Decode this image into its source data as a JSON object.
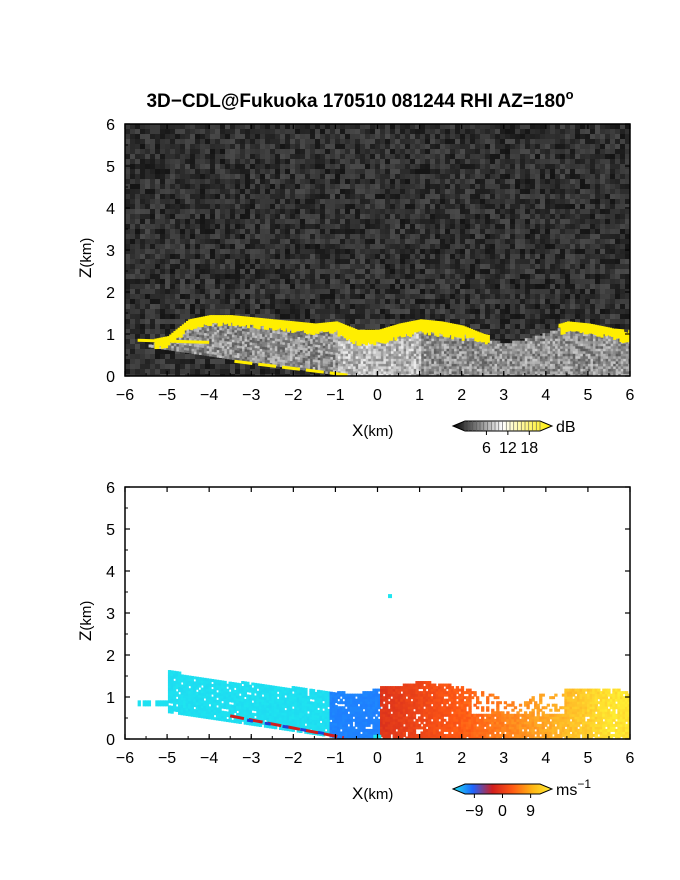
{
  "figure": {
    "title": "3D−CDL@Fukuoka 170510 081244 RHI AZ=180",
    "title_superscript": "o"
  },
  "chart_data": [
    {
      "type": "heatmap",
      "name": "backscatter",
      "xlabel_main": "X",
      "xlabel_unit": "(km)",
      "ylabel_main": "Z",
      "ylabel_unit": "(km)",
      "xlim": [
        -6,
        6
      ],
      "ylim": [
        0,
        6
      ],
      "x_ticks": [
        "−6",
        "−5",
        "−4",
        "−3",
        "−2",
        "−1",
        "0",
        "1",
        "2",
        "3",
        "4",
        "5",
        "6"
      ],
      "y_ticks": [
        "0",
        "1",
        "2",
        "3",
        "4",
        "5",
        "6"
      ],
      "colorbar": {
        "unit": "dB",
        "ticks": [
          "6",
          "12",
          "18"
        ],
        "tick_values": [
          6,
          12,
          18
        ],
        "range": [
          0,
          21
        ],
        "colors": [
          "#000000",
          "#ffffff",
          "#ffee00"
        ]
      },
      "layer_top_km": [
        [
          -5.5,
          0.85
        ],
        [
          -5.0,
          0.95
        ],
        [
          -4.5,
          1.35
        ],
        [
          -4.0,
          1.45
        ],
        [
          -3.5,
          1.45
        ],
        [
          -3.0,
          1.4
        ],
        [
          -2.5,
          1.35
        ],
        [
          -2.0,
          1.3
        ],
        [
          -1.5,
          1.25
        ],
        [
          -1.0,
          1.3
        ],
        [
          -0.5,
          1.1
        ],
        [
          0.0,
          1.1
        ],
        [
          0.5,
          1.25
        ],
        [
          1.0,
          1.35
        ],
        [
          1.5,
          1.3
        ],
        [
          2.0,
          1.2
        ],
        [
          2.5,
          1.0
        ],
        [
          3.0,
          0.9
        ],
        [
          3.5,
          1.0
        ],
        [
          4.0,
          1.15
        ],
        [
          4.5,
          1.3
        ],
        [
          5.0,
          1.25
        ],
        [
          5.5,
          1.15
        ],
        [
          6.0,
          1.0
        ]
      ]
    },
    {
      "type": "heatmap",
      "name": "radial_velocity",
      "xlabel_main": "X",
      "xlabel_unit": "(km)",
      "ylabel_main": "Z",
      "ylabel_unit": "(km)",
      "xlim": [
        -6,
        6
      ],
      "ylim": [
        0,
        6
      ],
      "x_ticks": [
        "−6",
        "−5",
        "−4",
        "−3",
        "−2",
        "−1",
        "0",
        "1",
        "2",
        "3",
        "4",
        "5",
        "6"
      ],
      "y_ticks": [
        "0",
        "1",
        "2",
        "3",
        "4",
        "5",
        "6"
      ],
      "colorbar": {
        "unit": "ms",
        "unit_superscript": "−1",
        "ticks": [
          "−9",
          "0",
          "9"
        ],
        "tick_values": [
          -9,
          0,
          9
        ],
        "range": [
          -12,
          12
        ],
        "colors": [
          "#1ee6f0",
          "#1e64ff",
          "#d21e1e",
          "#ff5a14",
          "#ffb414",
          "#ffee32"
        ]
      },
      "layer_top_km": [
        [
          -5.5,
          0.95
        ],
        [
          -5.0,
          1.6
        ],
        [
          -4.5,
          1.5
        ],
        [
          -4.0,
          1.4
        ],
        [
          -3.5,
          1.35
        ],
        [
          -3.0,
          1.3
        ],
        [
          -2.5,
          1.25
        ],
        [
          -2.0,
          1.2
        ],
        [
          -1.5,
          1.15
        ],
        [
          -1.0,
          1.1
        ],
        [
          -0.5,
          1.05
        ],
        [
          0.0,
          1.2
        ],
        [
          0.5,
          1.25
        ],
        [
          1.0,
          1.35
        ],
        [
          1.5,
          1.3
        ],
        [
          2.0,
          1.2
        ],
        [
          2.5,
          1.1
        ],
        [
          3.0,
          0.9
        ],
        [
          3.5,
          0.9
        ],
        [
          4.0,
          1.1
        ],
        [
          4.5,
          1.15
        ],
        [
          5.0,
          1.2
        ],
        [
          5.5,
          1.2
        ],
        [
          6.0,
          1.05
        ]
      ]
    }
  ]
}
